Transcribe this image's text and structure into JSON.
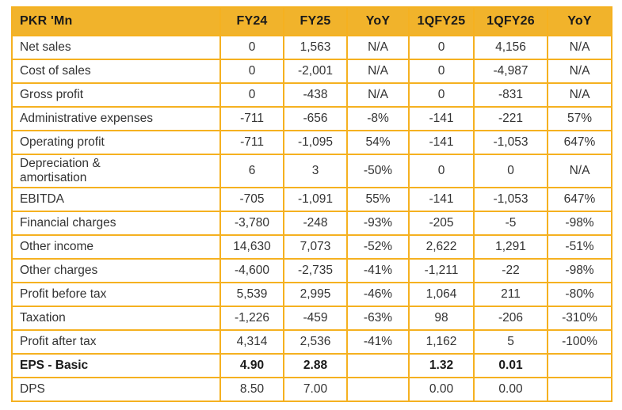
{
  "colors": {
    "header_bg": "#F1B32B",
    "grid_border": "#F5B120",
    "header_text": "#1A1A1A",
    "body_text": "#333333"
  },
  "table": {
    "columns": [
      "PKR 'Mn",
      "FY24",
      "FY25",
      "YoY",
      "1QFY25",
      "1QFY26",
      "YoY"
    ],
    "rows": [
      {
        "label": "Net sales",
        "values": [
          "0",
          "1,563",
          "N/A",
          "0",
          "4,156",
          "N/A"
        ],
        "bold": false
      },
      {
        "label": "Cost of sales",
        "values": [
          "0",
          "-2,001",
          "N/A",
          "0",
          "-4,987",
          "N/A"
        ],
        "bold": false
      },
      {
        "label": "Gross profit",
        "values": [
          "0",
          "-438",
          "N/A",
          "0",
          "-831",
          "N/A"
        ],
        "bold": false
      },
      {
        "label": "Administrative expenses",
        "values": [
          "-711",
          "-656",
          "-8%",
          "-141",
          "-221",
          "57%"
        ],
        "bold": false
      },
      {
        "label": "Operating profit",
        "values": [
          "-711",
          "-1,095",
          "54%",
          "-141",
          "-1,053",
          "647%"
        ],
        "bold": false
      },
      {
        "label": "Depreciation &\namortisation",
        "values": [
          "6",
          "3",
          "-50%",
          "0",
          "0",
          "N/A"
        ],
        "bold": false
      },
      {
        "label": "EBITDA",
        "values": [
          "-705",
          "-1,091",
          "55%",
          "-141",
          "-1,053",
          "647%"
        ],
        "bold": false
      },
      {
        "label": "Financial charges",
        "values": [
          "-3,780",
          "-248",
          "-93%",
          "-205",
          "-5",
          "-98%"
        ],
        "bold": false
      },
      {
        "label": "Other income",
        "values": [
          "14,630",
          "7,073",
          "-52%",
          "2,622",
          "1,291",
          "-51%"
        ],
        "bold": false
      },
      {
        "label": "Other charges",
        "values": [
          "-4,600",
          "-2,735",
          "-41%",
          "-1,211",
          "-22",
          "-98%"
        ],
        "bold": false
      },
      {
        "label": "Profit before tax",
        "values": [
          "5,539",
          "2,995",
          "-46%",
          "1,064",
          "211",
          "-80%"
        ],
        "bold": false
      },
      {
        "label": "Taxation",
        "values": [
          "-1,226",
          "-459",
          "-63%",
          "98",
          "-206",
          "-310%"
        ],
        "bold": false
      },
      {
        "label": "Profit after tax",
        "values": [
          "4,314",
          "2,536",
          "-41%",
          "1,162",
          "5",
          "-100%"
        ],
        "bold": false
      },
      {
        "label": "EPS - Basic",
        "values": [
          "4.90",
          "2.88",
          "",
          "1.32",
          "0.01",
          ""
        ],
        "bold": true
      },
      {
        "label": "DPS",
        "values": [
          "8.50",
          "7.00",
          "",
          "0.00",
          "0.00",
          ""
        ],
        "bold": false
      }
    ]
  }
}
